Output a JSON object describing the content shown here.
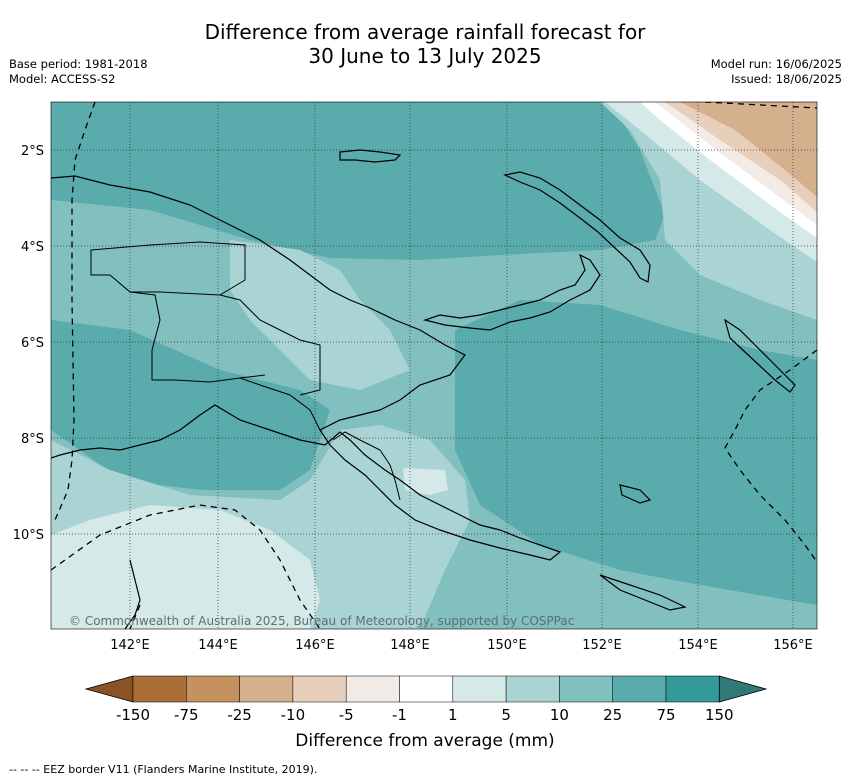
{
  "title_line1": "Difference from average rainfall forecast for",
  "title_line2": "30 June to 13 July 2025",
  "meta": {
    "base_period": "Base period: 1981-2018",
    "model": "Model: ACCESS-S2",
    "model_run": "Model run: 16/06/2025",
    "issued": "Issued: 18/06/2025"
  },
  "copyright": "© Commonwealth of Australia 2025, Bureau of Meteorology, supported by COSPPac",
  "axes": {
    "lon_labels": [
      "142°E",
      "144°E",
      "146°E",
      "148°E",
      "150°E",
      "152°E",
      "154°E",
      "156°E"
    ],
    "lat_labels": [
      "2°S",
      "4°S",
      "6°S",
      "8°S",
      "10°S"
    ]
  },
  "colorbar": {
    "title": "Difference from average (mm)",
    "tick_labels": [
      "-150",
      "-75",
      "-25",
      "-10",
      "-5",
      "-1",
      "1",
      "5",
      "10",
      "25",
      "75",
      "150"
    ],
    "colors": [
      "#a96f37",
      "#c5925f",
      "#d5b08c",
      "#e8cfbb",
      "#f2ebe6",
      "#ffffff",
      "#d5e9e8",
      "#aad4d4",
      "#82bfbf",
      "#5aabab",
      "#339999"
    ],
    "extend_low_color": "#8a5226",
    "extend_high_color": "#2f7a76"
  },
  "legend_footnote": "--  --  -- EEZ border V11 (Flanders Marine Institute, 2019).",
  "map_colors": {
    "c1": "#d5e9e8",
    "c2": "#aad4d4",
    "c3": "#82bfbf",
    "c4": "#5aabab",
    "dry1": "#f2ebe6",
    "dry2": "#e8cfbb",
    "dry3": "#d5b08c"
  }
}
